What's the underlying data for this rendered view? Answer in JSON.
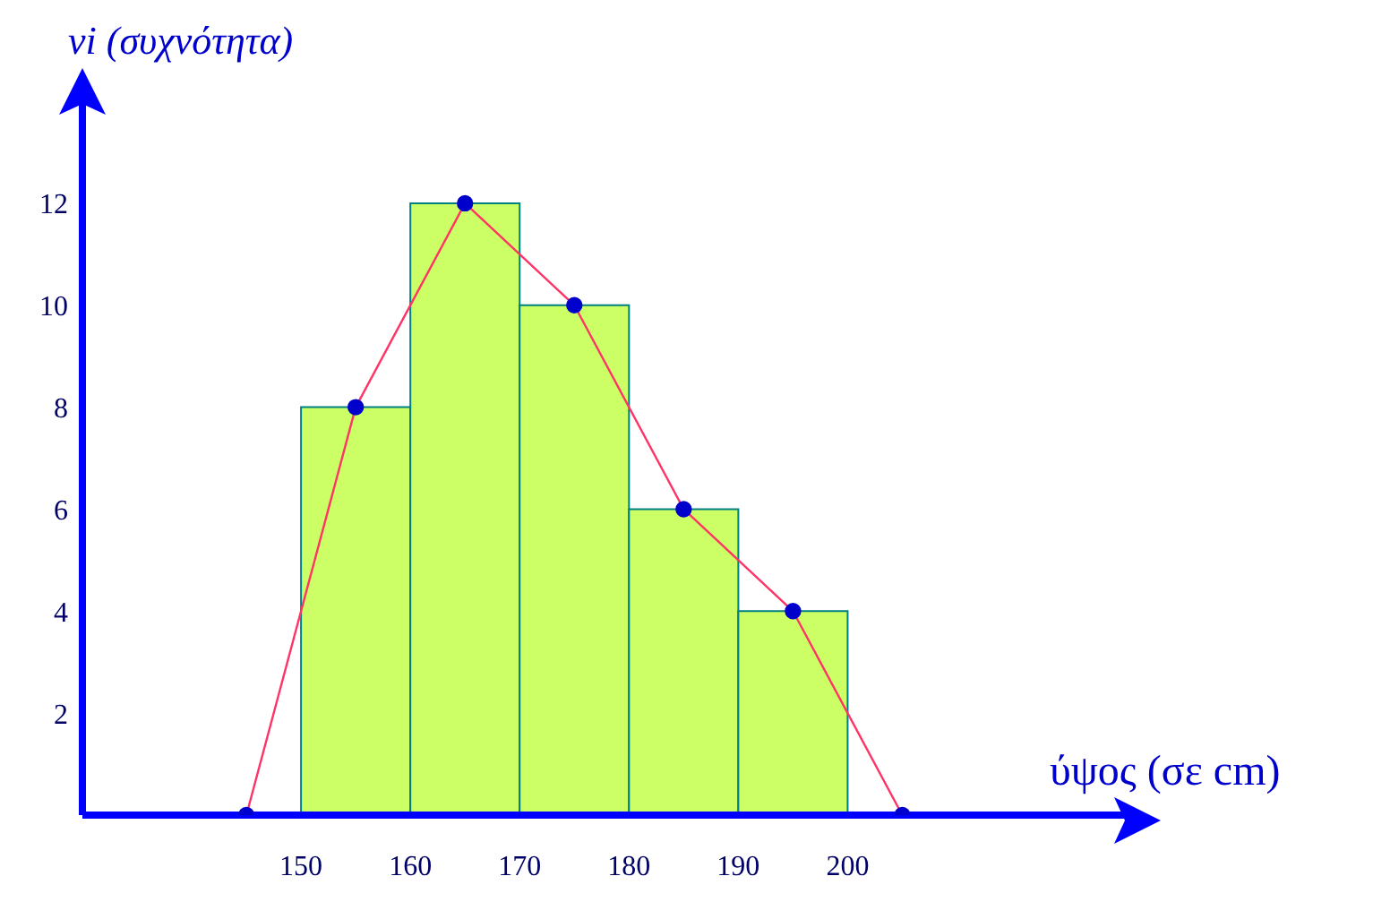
{
  "chart_data": {
    "type": "histogram",
    "xlabel": "ύψος (σε cm)",
    "ylabel": "νi (συχνότητα)",
    "series": [
      {
        "bins": [
          150,
          160,
          170,
          180,
          190,
          200
        ],
        "values": [
          8,
          12,
          10,
          6,
          4
        ],
        "color": "#ccff66"
      },
      {
        "type": "line",
        "x": [
          145,
          155,
          165,
          175,
          185,
          195,
          205
        ],
        "values": [
          0,
          8,
          12,
          10,
          6,
          4,
          0
        ],
        "color": "#ff3366",
        "marker": "circle"
      }
    ],
    "xlim": [
      130,
      227
    ],
    "xticks": [
      150,
      160,
      170,
      180,
      190,
      200
    ],
    "ylim": [
      0,
      14.3
    ],
    "yticks": [
      2,
      4,
      6,
      8,
      10,
      12
    ],
    "grid": false
  }
}
